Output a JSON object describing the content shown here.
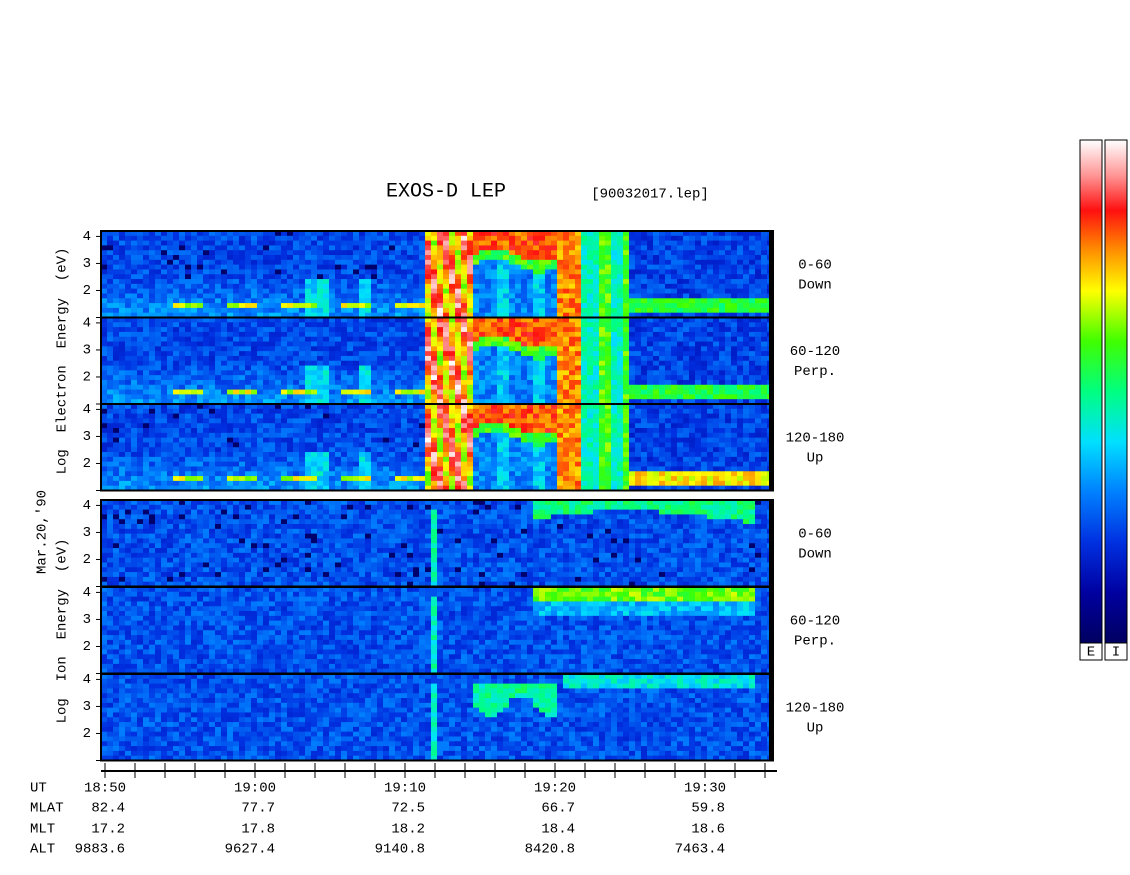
{
  "header": {
    "title": "EXOS-D LEP",
    "file": "[90032017.lep]"
  },
  "date": "Mar.20,'90",
  "energy_ticks": [
    4,
    3,
    2
  ],
  "groups": [
    {
      "axis_label": "Log  Electron  Energy  (eV)",
      "panels": [
        {
          "angle": "0-60",
          "direction": "Down"
        },
        {
          "angle": "60-120",
          "direction": "Perp."
        },
        {
          "angle": "120-180",
          "direction": "Up"
        }
      ]
    },
    {
      "axis_label": "Log  Ion  Energy  (eV)",
      "panels": [
        {
          "angle": "0-60",
          "direction": "Down"
        },
        {
          "angle": "60-120",
          "direction": "Perp."
        },
        {
          "angle": "120-180",
          "direction": "Up"
        }
      ]
    }
  ],
  "time_axis": {
    "rows": [
      {
        "name": "UT",
        "values": [
          "18:50",
          "19:00",
          "19:10",
          "19:20",
          "19:30"
        ]
      },
      {
        "name": "MLAT",
        "values": [
          82.4,
          77.7,
          72.5,
          66.7,
          59.8
        ]
      },
      {
        "name": "MLT",
        "values": [
          17.2,
          17.8,
          18.2,
          18.4,
          18.6
        ]
      },
      {
        "name": "ALT",
        "values": [
          9883.6,
          9627.4,
          9140.8,
          8420.8,
          7463.4
        ]
      }
    ]
  },
  "color_bar": {
    "labels": [
      "E",
      "I"
    ]
  }
}
